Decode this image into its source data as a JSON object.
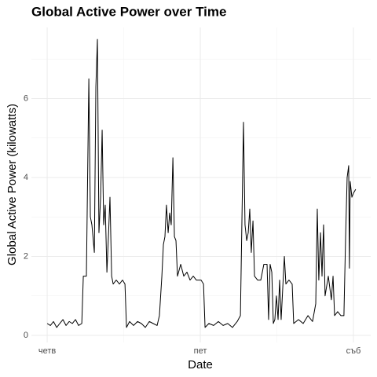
{
  "chart_data": {
    "type": "line",
    "title": "Global Active Power over Time",
    "x_label": "Date",
    "y_label": "Global Active Power (kilowatts)",
    "xlim": [
      -0.103,
      2.113
    ],
    "ylim": [
      -0.18,
      7.8
    ],
    "xticks": [
      {
        "value": 0,
        "label": "четв"
      },
      {
        "value": 1,
        "label": "пет"
      },
      {
        "value": 2,
        "label": "съб"
      }
    ],
    "yticks": [
      0,
      2,
      4,
      6
    ],
    "x_minor_grid": [
      0.5,
      1.5
    ],
    "y_minor_grid": [
      1,
      3,
      5,
      7
    ],
    "grid": true,
    "series": [
      {
        "name": "Global Active Power",
        "color": "#000000",
        "x": [
          0,
          0.021,
          0.041,
          0.062,
          0.082,
          0.103,
          0.123,
          0.144,
          0.164,
          0.185,
          0.205,
          0.226,
          0.236,
          0.256,
          0.272,
          0.282,
          0.292,
          0.308,
          0.318,
          0.328,
          0.338,
          0.349,
          0.359,
          0.369,
          0.379,
          0.39,
          0.4,
          0.41,
          0.421,
          0.431,
          0.451,
          0.472,
          0.492,
          0.508,
          0.518,
          0.538,
          0.564,
          0.59,
          0.615,
          0.641,
          0.667,
          0.692,
          0.718,
          0.733,
          0.749,
          0.759,
          0.769,
          0.779,
          0.79,
          0.8,
          0.81,
          0.821,
          0.831,
          0.841,
          0.851,
          0.872,
          0.892,
          0.913,
          0.933,
          0.954,
          0.974,
          1.005,
          1.021,
          1.031,
          1.056,
          1.087,
          1.118,
          1.149,
          1.179,
          1.21,
          1.241,
          1.262,
          1.282,
          1.292,
          1.303,
          1.313,
          1.323,
          1.333,
          1.344,
          1.354,
          1.374,
          1.395,
          1.415,
          1.436,
          1.446,
          1.456,
          1.467,
          1.477,
          1.487,
          1.497,
          1.508,
          1.518,
          1.528,
          1.549,
          1.559,
          1.579,
          1.6,
          1.61,
          1.641,
          1.672,
          1.703,
          1.733,
          1.754,
          1.764,
          1.774,
          1.785,
          1.795,
          1.805,
          1.815,
          1.836,
          1.856,
          1.867,
          1.877,
          1.897,
          1.918,
          1.938,
          1.949,
          1.959,
          1.969,
          1.974,
          1.979,
          1.99,
          2.0,
          2.015
        ],
        "values": [
          0.3,
          0.25,
          0.35,
          0.2,
          0.3,
          0.4,
          0.25,
          0.35,
          0.3,
          0.4,
          0.25,
          0.3,
          1.5,
          1.5,
          6.5,
          3.0,
          2.8,
          2.1,
          6.3,
          7.5,
          2.6,
          3.5,
          5.2,
          2.8,
          3.3,
          1.6,
          2.5,
          3.5,
          1.5,
          1.3,
          1.4,
          1.3,
          1.4,
          1.3,
          0.2,
          0.35,
          0.25,
          0.35,
          0.3,
          0.2,
          0.35,
          0.3,
          0.25,
          0.5,
          1.5,
          2.3,
          2.5,
          3.3,
          2.6,
          3.1,
          2.8,
          4.5,
          2.5,
          2.4,
          1.5,
          1.8,
          1.5,
          1.6,
          1.4,
          1.5,
          1.4,
          1.4,
          1.3,
          0.2,
          0.3,
          0.25,
          0.35,
          0.25,
          0.3,
          0.2,
          0.35,
          0.5,
          5.4,
          2.8,
          2.4,
          2.6,
          3.2,
          2.1,
          2.9,
          1.5,
          1.4,
          1.4,
          1.8,
          1.8,
          0.4,
          1.8,
          1.6,
          0.3,
          0.4,
          1.0,
          0.4,
          1.4,
          0.4,
          2.0,
          1.3,
          1.4,
          1.3,
          0.3,
          0.4,
          0.3,
          0.5,
          0.35,
          0.8,
          3.2,
          1.4,
          2.6,
          1.5,
          2.8,
          1.0,
          1.5,
          0.9,
          1.5,
          0.5,
          0.6,
          0.5,
          0.5,
          2.5,
          4.0,
          4.3,
          1.7,
          3.9,
          3.5,
          3.6,
          3.7
        ]
      }
    ]
  }
}
